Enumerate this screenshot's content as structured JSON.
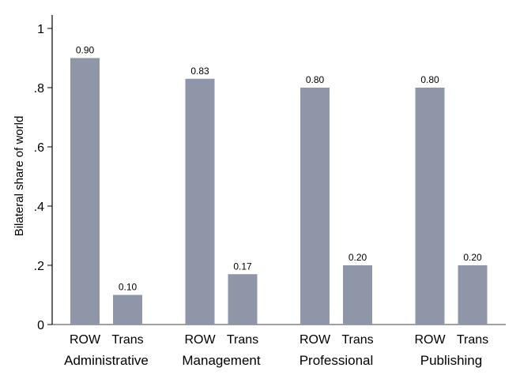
{
  "chart_data": {
    "type": "bar",
    "ylabel": "Bilateral share of world",
    "ylim": [
      0,
      1
    ],
    "yticks": [
      {
        "value": 0,
        "label": "0"
      },
      {
        "value": 0.2,
        "label": ".2"
      },
      {
        "value": 0.4,
        "label": ".4"
      },
      {
        "value": 0.6,
        "label": ".6"
      },
      {
        "value": 0.8,
        "label": ".8"
      },
      {
        "value": 1,
        "label": "1"
      }
    ],
    "groups": [
      {
        "name": "Administrative",
        "bars": [
          {
            "category": "ROW",
            "value": 0.9,
            "label": "0.90"
          },
          {
            "category": "Trans",
            "value": 0.1,
            "label": "0.10"
          }
        ]
      },
      {
        "name": "Management",
        "bars": [
          {
            "category": "ROW",
            "value": 0.83,
            "label": "0.83"
          },
          {
            "category": "Trans",
            "value": 0.17,
            "label": "0.17"
          }
        ]
      },
      {
        "name": "Professional",
        "bars": [
          {
            "category": "ROW",
            "value": 0.8,
            "label": "0.80"
          },
          {
            "category": "Trans",
            "value": 0.2,
            "label": "0.20"
          }
        ]
      },
      {
        "name": "Publishing",
        "bars": [
          {
            "category": "ROW",
            "value": 0.8,
            "label": "0.80"
          },
          {
            "category": "Trans",
            "value": 0.2,
            "label": "0.20"
          }
        ]
      }
    ],
    "bar_color": "#8f96a8",
    "grid": false,
    "legend": "none"
  }
}
